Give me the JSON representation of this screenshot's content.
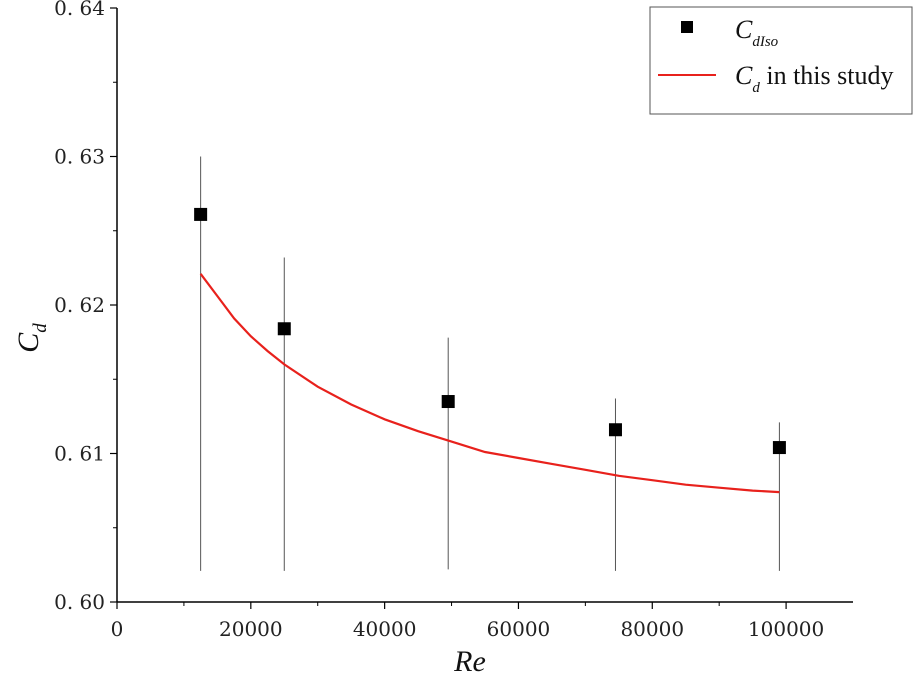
{
  "chart_data": {
    "type": "scatter",
    "xlabel": "Re",
    "ylabel": {
      "main": "C",
      "sub": "d"
    },
    "xlim": [
      0,
      110000
    ],
    "ylim": [
      0.6,
      0.64
    ],
    "x_ticks": [
      0,
      20000,
      40000,
      60000,
      80000,
      100000
    ],
    "x_tick_labels": [
      "0",
      "20000",
      "40000",
      "60000",
      "80000",
      "100000"
    ],
    "y_ticks": [
      0.6,
      0.61,
      0.62,
      0.63,
      0.64
    ],
    "y_tick_labels": [
      "0. 60",
      "0. 61",
      "0. 62",
      "0. 63",
      "0. 64"
    ],
    "grid": false,
    "legend_position": "top-right",
    "series": [
      {
        "name": {
          "main": "C",
          "sub": "dIso"
        },
        "kind": "scatter",
        "marker": "square",
        "color": "#000000",
        "x": [
          12500,
          25000,
          49500,
          74500,
          99000
        ],
        "y": [
          0.6261,
          0.6184,
          0.6135,
          0.6116,
          0.6104
        ],
        "error_upper": [
          0.63,
          0.6232,
          0.6178,
          0.6137,
          0.6121
        ],
        "error_lower": [
          0.6021,
          0.6021,
          0.6022,
          0.6021,
          0.6021
        ]
      },
      {
        "name": {
          "main": "C",
          "sub": "d",
          "rest": " in this study"
        },
        "kind": "line",
        "color": "#e8211c",
        "x": [
          12500,
          15000,
          17500,
          20000,
          22500,
          25000,
          30000,
          35000,
          40000,
          45000,
          50000,
          55000,
          60000,
          65000,
          70000,
          75000,
          80000,
          85000,
          90000,
          95000,
          99000
        ],
        "y": [
          0.6221,
          0.6206,
          0.6191,
          0.6179,
          0.6169,
          0.616,
          0.6145,
          0.6133,
          0.6123,
          0.6115,
          0.6108,
          0.6101,
          0.6097,
          0.6093,
          0.6089,
          0.6085,
          0.6082,
          0.6079,
          0.6077,
          0.6075,
          0.6074
        ]
      }
    ]
  }
}
